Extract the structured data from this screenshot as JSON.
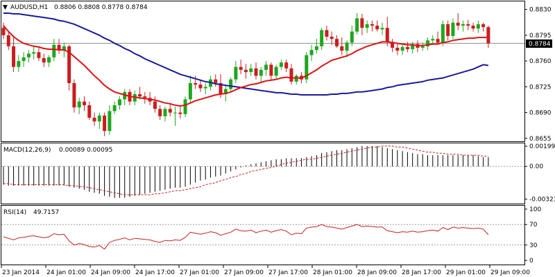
{
  "main_header": {
    "symbol": "AUDUSD,H1",
    "ohlc": "0.8806 0.8808 0.8778 0.8784",
    "arrow": "▼"
  },
  "macd_header": {
    "label": "MACD(12,26,9)",
    "values": "0.00089 0.00095"
  },
  "rsi_header": {
    "label": "RSI(14)",
    "value": "49.7157"
  },
  "price_axis": {
    "ticks": [
      "0.8830",
      "0.8795",
      "0.8760",
      "0.8725",
      "0.8690",
      "0.8655"
    ],
    "current": "0.8784"
  },
  "macd_axis": {
    "ticks": [
      "0.00199",
      "0.00",
      "-0.00323"
    ]
  },
  "rsi_axis": {
    "ticks": [
      "100",
      "70",
      "30",
      "0"
    ]
  },
  "time_labels": [
    "23 Jan 2014",
    "24 Jan 01:00",
    "24 Jan 09:00",
    "24 Jan 17:00",
    "27 Jan 01:00",
    "27 Jan 09:00",
    "27 Jan 17:00",
    "28 Jan 01:00",
    "28 Jan 09:00",
    "28 Jan 17:00",
    "29 Jan 01:00",
    "29 Jan 09:00"
  ],
  "colors": {
    "bull": "#1fa61f",
    "bear": "#c81e1e",
    "ma_fast": "#e01010",
    "ma_slow": "#1a1a9a",
    "macd_signal": "#c81e1e",
    "rsi": "#c81e1e",
    "grid": "#000000"
  },
  "chart_data": [
    {
      "type": "candlestick",
      "title": "AUDUSD,H1",
      "ylim": [
        0.8652,
        0.884
      ],
      "candles": [
        [
          0.8805,
          0.8812,
          0.879,
          0.8795
        ],
        [
          0.8795,
          0.88,
          0.8775,
          0.878
        ],
        [
          0.878,
          0.8792,
          0.8745,
          0.8752
        ],
        [
          0.8752,
          0.8768,
          0.8745,
          0.876
        ],
        [
          0.876,
          0.8772,
          0.8752,
          0.8765
        ],
        [
          0.8765,
          0.8775,
          0.8758,
          0.877
        ],
        [
          0.877,
          0.878,
          0.8762,
          0.8772
        ],
        [
          0.8772,
          0.8778,
          0.876,
          0.8764
        ],
        [
          0.8764,
          0.877,
          0.8752,
          0.8758
        ],
        [
          0.8758,
          0.8768,
          0.8752,
          0.8765
        ],
        [
          0.8765,
          0.879,
          0.876,
          0.8782
        ],
        [
          0.8782,
          0.879,
          0.877,
          0.8775
        ],
        [
          0.8775,
          0.8785,
          0.8765,
          0.878
        ],
        [
          0.878,
          0.8782,
          0.872,
          0.873
        ],
        [
          0.873,
          0.8735,
          0.869,
          0.8697
        ],
        [
          0.8697,
          0.871,
          0.8688,
          0.8705
        ],
        [
          0.8705,
          0.8712,
          0.8692,
          0.87
        ],
        [
          0.87,
          0.8705,
          0.868,
          0.8683
        ],
        [
          0.8683,
          0.869,
          0.8672,
          0.8678
        ],
        [
          0.8678,
          0.869,
          0.8668,
          0.8686
        ],
        [
          0.8686,
          0.869,
          0.8658,
          0.8665
        ],
        [
          0.8665,
          0.87,
          0.866,
          0.8692
        ],
        [
          0.8692,
          0.8705,
          0.8688,
          0.87
        ],
        [
          0.87,
          0.8712,
          0.8694,
          0.8708
        ],
        [
          0.8708,
          0.8722,
          0.87,
          0.8718
        ],
        [
          0.8718,
          0.8722,
          0.87,
          0.8705
        ],
        [
          0.8705,
          0.872,
          0.87,
          0.8715
        ],
        [
          0.8715,
          0.8725,
          0.8708,
          0.8712
        ],
        [
          0.8712,
          0.8718,
          0.8702,
          0.871
        ],
        [
          0.871,
          0.8718,
          0.87,
          0.8705
        ],
        [
          0.8705,
          0.8712,
          0.869,
          0.8695
        ],
        [
          0.8695,
          0.87,
          0.868,
          0.8685
        ],
        [
          0.8685,
          0.8698,
          0.8678,
          0.8695
        ],
        [
          0.8695,
          0.8702,
          0.8685,
          0.869
        ],
        [
          0.869,
          0.8698,
          0.8672,
          0.869
        ],
        [
          0.869,
          0.87,
          0.8682,
          0.8688
        ],
        [
          0.8688,
          0.8712,
          0.8684,
          0.8708
        ],
        [
          0.8708,
          0.874,
          0.8704,
          0.873
        ],
        [
          0.873,
          0.874,
          0.8722,
          0.8728
        ],
        [
          0.8728,
          0.8735,
          0.8718,
          0.8723
        ],
        [
          0.8723,
          0.873,
          0.8715,
          0.8725
        ],
        [
          0.8725,
          0.874,
          0.872,
          0.8735
        ],
        [
          0.8735,
          0.8742,
          0.8725,
          0.873
        ],
        [
          0.873,
          0.8742,
          0.871,
          0.8715
        ],
        [
          0.8715,
          0.8728,
          0.8705,
          0.8722
        ],
        [
          0.8722,
          0.8738,
          0.8718,
          0.8735
        ],
        [
          0.8735,
          0.876,
          0.873,
          0.8752
        ],
        [
          0.8752,
          0.8762,
          0.8742,
          0.8748
        ],
        [
          0.8748,
          0.8756,
          0.8736,
          0.8745
        ],
        [
          0.8745,
          0.8756,
          0.874,
          0.875
        ],
        [
          0.875,
          0.8758,
          0.8735,
          0.874
        ],
        [
          0.874,
          0.8752,
          0.873,
          0.8748
        ],
        [
          0.8748,
          0.876,
          0.874,
          0.8755
        ],
        [
          0.8755,
          0.8758,
          0.8735,
          0.874
        ],
        [
          0.874,
          0.8755,
          0.8735,
          0.8752
        ],
        [
          0.8752,
          0.8762,
          0.8748,
          0.8758
        ],
        [
          0.8758,
          0.8762,
          0.8745,
          0.875
        ],
        [
          0.875,
          0.8756,
          0.8728,
          0.8732
        ],
        [
          0.8732,
          0.8742,
          0.8728,
          0.874
        ],
        [
          0.874,
          0.8745,
          0.873,
          0.8735
        ],
        [
          0.8735,
          0.8772,
          0.873,
          0.8768
        ],
        [
          0.8768,
          0.8782,
          0.876,
          0.8775
        ],
        [
          0.8775,
          0.879,
          0.877,
          0.878
        ],
        [
          0.878,
          0.8805,
          0.8775,
          0.8802
        ],
        [
          0.8802,
          0.8808,
          0.8788,
          0.8793
        ],
        [
          0.8793,
          0.88,
          0.8782,
          0.879
        ],
        [
          0.879,
          0.8795,
          0.8778,
          0.878
        ],
        [
          0.878,
          0.8792,
          0.8768,
          0.8774
        ],
        [
          0.8774,
          0.8788,
          0.8765,
          0.8785
        ],
        [
          0.8785,
          0.8808,
          0.878,
          0.88
        ],
        [
          0.88,
          0.8825,
          0.8796,
          0.8818
        ],
        [
          0.8818,
          0.8824,
          0.8795,
          0.8805
        ],
        [
          0.8805,
          0.8815,
          0.8798,
          0.881
        ],
        [
          0.881,
          0.8815,
          0.88,
          0.8808
        ],
        [
          0.8808,
          0.8815,
          0.88,
          0.8803
        ],
        [
          0.8803,
          0.8812,
          0.8795,
          0.8805
        ],
        [
          0.8805,
          0.882,
          0.878,
          0.8786
        ],
        [
          0.8786,
          0.879,
          0.8772,
          0.8778
        ],
        [
          0.8778,
          0.8785,
          0.8768,
          0.8774
        ],
        [
          0.8774,
          0.8782,
          0.8768,
          0.8779
        ],
        [
          0.8779,
          0.8786,
          0.8772,
          0.8776
        ],
        [
          0.8776,
          0.8786,
          0.877,
          0.8783
        ],
        [
          0.8783,
          0.8788,
          0.8772,
          0.8778
        ],
        [
          0.8778,
          0.8785,
          0.8774,
          0.878
        ],
        [
          0.878,
          0.8792,
          0.8775,
          0.8788
        ],
        [
          0.8788,
          0.8795,
          0.8782,
          0.879
        ],
        [
          0.879,
          0.88,
          0.8782,
          0.8785
        ],
        [
          0.8785,
          0.8815,
          0.878,
          0.881
        ],
        [
          0.881,
          0.8815,
          0.8788,
          0.8794
        ],
        [
          0.8794,
          0.8818,
          0.879,
          0.8812
        ],
        [
          0.8812,
          0.8825,
          0.8802,
          0.8808
        ],
        [
          0.8808,
          0.8815,
          0.88,
          0.881
        ],
        [
          0.881,
          0.8816,
          0.8802,
          0.8808
        ],
        [
          0.8808,
          0.8812,
          0.88,
          0.8804
        ],
        [
          0.8804,
          0.8815,
          0.8798,
          0.881
        ],
        [
          0.881,
          0.8812,
          0.88,
          0.8806
        ],
        [
          0.8806,
          0.8808,
          0.8778,
          0.8784
        ]
      ],
      "ma_fast": [
        0.8808,
        0.88,
        0.8793,
        0.8788,
        0.8784,
        0.8782,
        0.878,
        0.8779,
        0.8777,
        0.8776,
        0.8776,
        0.8775,
        0.8775,
        0.8772,
        0.8766,
        0.876,
        0.8754,
        0.8747,
        0.874,
        0.8734,
        0.8727,
        0.8722,
        0.8718,
        0.8716,
        0.8714,
        0.8712,
        0.8711,
        0.871,
        0.8709,
        0.8708,
        0.8707,
        0.8705,
        0.8703,
        0.8702,
        0.87,
        0.8699,
        0.87,
        0.8703,
        0.8706,
        0.8708,
        0.871,
        0.8712,
        0.8714,
        0.8715,
        0.8716,
        0.8718,
        0.8721,
        0.8724,
        0.8726,
        0.8728,
        0.8729,
        0.8731,
        0.8733,
        0.8734,
        0.8735,
        0.8737,
        0.8738,
        0.8737,
        0.8737,
        0.8737,
        0.874,
        0.8744,
        0.8748,
        0.8753,
        0.8757,
        0.8761,
        0.8763,
        0.8765,
        0.8767,
        0.877,
        0.8774,
        0.8777,
        0.878,
        0.8782,
        0.8784,
        0.8786,
        0.8786,
        0.8785,
        0.8784,
        0.8783,
        0.8782,
        0.8782,
        0.8781,
        0.8781,
        0.8782,
        0.8783,
        0.8783,
        0.8785,
        0.8786,
        0.8788,
        0.8789,
        0.879,
        0.8791,
        0.8791,
        0.8792,
        0.8792,
        0.8792
      ],
      "ma_slow": [
        0.8825,
        0.8825,
        0.8824,
        0.8824,
        0.8823,
        0.8822,
        0.8821,
        0.882,
        0.8819,
        0.8818,
        0.8817,
        0.8815,
        0.8814,
        0.8812,
        0.881,
        0.8807,
        0.8804,
        0.8801,
        0.8798,
        0.8795,
        0.8791,
        0.8788,
        0.8784,
        0.8781,
        0.8777,
        0.8774,
        0.877,
        0.8767,
        0.8763,
        0.876,
        0.8757,
        0.8754,
        0.8751,
        0.8748,
        0.8745,
        0.8742,
        0.874,
        0.8738,
        0.8736,
        0.8734,
        0.8732,
        0.8731,
        0.8729,
        0.8728,
        0.8727,
        0.8726,
        0.8725,
        0.8724,
        0.8723,
        0.8722,
        0.8721,
        0.872,
        0.8719,
        0.8718,
        0.8717,
        0.8717,
        0.8716,
        0.8715,
        0.8715,
        0.8714,
        0.8714,
        0.8714,
        0.8714,
        0.8714,
        0.8714,
        0.8715,
        0.8715,
        0.8716,
        0.8716,
        0.8717,
        0.8718,
        0.8718,
        0.8719,
        0.872,
        0.8721,
        0.8722,
        0.8724,
        0.8725,
        0.8727,
        0.8728,
        0.8729,
        0.873,
        0.8731,
        0.8732,
        0.8734,
        0.8735,
        0.8736,
        0.8737,
        0.8739,
        0.8741,
        0.8743,
        0.8745,
        0.8747,
        0.8749,
        0.8752,
        0.8755,
        0.8754
      ]
    },
    {
      "type": "bar",
      "title": "MACD(12,26,9)",
      "ylim": [
        -0.0036,
        0.0022
      ],
      "histogram": [
        -0.0018,
        -0.0019,
        -0.0019,
        -0.0019,
        -0.0019,
        -0.0019,
        -0.0019,
        -0.0019,
        -0.0019,
        -0.0019,
        -0.0019,
        -0.0019,
        -0.0019,
        -0.002,
        -0.0021,
        -0.0022,
        -0.0023,
        -0.0025,
        -0.0026,
        -0.0027,
        -0.0029,
        -0.003,
        -0.0031,
        -0.0031,
        -0.0031,
        -0.003,
        -0.0029,
        -0.0028,
        -0.0027,
        -0.0026,
        -0.0025,
        -0.0024,
        -0.0023,
        -0.0022,
        -0.0021,
        -0.0021,
        -0.002,
        -0.0018,
        -0.0016,
        -0.0014,
        -0.0013,
        -0.0011,
        -0.001,
        -0.0009,
        -0.0007,
        -0.0005,
        -0.0003,
        -0.0001,
        0.0001,
        0.0002,
        0.0003,
        0.0004,
        0.0005,
        0.0006,
        0.0007,
        0.0007,
        0.0008,
        0.0008,
        0.0008,
        0.0008,
        0.0009,
        0.001,
        0.0011,
        0.0013,
        0.0014,
        0.0015,
        0.0016,
        0.0016,
        0.0017,
        0.0018,
        0.0019,
        0.002,
        0.002,
        0.002,
        0.002,
        0.0019,
        0.0018,
        0.0017,
        0.0016,
        0.0015,
        0.0014,
        0.0013,
        0.0012,
        0.0012,
        0.0011,
        0.0011,
        0.0011,
        0.0011,
        0.0011,
        0.0011,
        0.0011,
        0.0011,
        0.0011,
        0.0011,
        0.001,
        0.0009,
        0.0009
      ],
      "signal": [
        -0.0017,
        -0.0017,
        -0.0018,
        -0.0018,
        -0.0018,
        -0.0018,
        -0.0018,
        -0.0018,
        -0.0018,
        -0.0018,
        -0.0018,
        -0.0018,
        -0.0018,
        -0.0019,
        -0.0019,
        -0.002,
        -0.002,
        -0.0021,
        -0.0022,
        -0.0023,
        -0.0024,
        -0.0025,
        -0.0026,
        -0.0027,
        -0.0028,
        -0.0028,
        -0.0028,
        -0.0028,
        -0.0028,
        -0.0028,
        -0.0027,
        -0.0027,
        -0.0026,
        -0.0025,
        -0.0024,
        -0.0024,
        -0.0023,
        -0.0022,
        -0.0021,
        -0.002,
        -0.0018,
        -0.0017,
        -0.0016,
        -0.0014,
        -0.0013,
        -0.0011,
        -0.001,
        -0.0008,
        -0.0007,
        -0.0005,
        -0.0004,
        -0.0003,
        -0.0002,
        -0.0001,
        0.0,
        0.0002,
        0.0003,
        0.0004,
        0.0005,
        0.0006,
        0.0007,
        0.0007,
        0.0008,
        0.0009,
        0.001,
        0.0011,
        0.0012,
        0.0013,
        0.0014,
        0.0015,
        0.0016,
        0.0017,
        0.0018,
        0.0019,
        0.0019,
        0.002,
        0.002,
        0.002,
        0.0019,
        0.0019,
        0.0018,
        0.0017,
        0.0016,
        0.0015,
        0.0014,
        0.0014,
        0.0013,
        0.0013,
        0.0012,
        0.0012,
        0.0012,
        0.0011,
        0.0011,
        0.0011,
        0.0011,
        0.001,
        0.001
      ]
    },
    {
      "type": "line",
      "title": "RSI(14)",
      "ylim": [
        0,
        100
      ],
      "levels": [
        70,
        30
      ],
      "values": [
        46,
        43,
        40,
        44,
        45,
        47,
        48,
        46,
        44,
        46,
        52,
        50,
        51,
        38,
        30,
        33,
        31,
        27,
        26,
        29,
        22,
        35,
        39,
        41,
        44,
        40,
        43,
        42,
        41,
        40,
        37,
        35,
        39,
        38,
        40,
        39,
        45,
        55,
        53,
        51,
        53,
        56,
        54,
        49,
        52,
        55,
        61,
        58,
        57,
        59,
        54,
        57,
        59,
        55,
        58,
        60,
        57,
        50,
        53,
        52,
        63,
        65,
        66,
        70,
        66,
        65,
        63,
        61,
        64,
        67,
        70,
        66,
        67,
        66,
        65,
        65,
        58,
        56,
        54,
        56,
        55,
        57,
        55,
        56,
        58,
        59,
        57,
        64,
        60,
        65,
        63,
        64,
        63,
        62,
        63,
        61,
        50
      ]
    }
  ]
}
